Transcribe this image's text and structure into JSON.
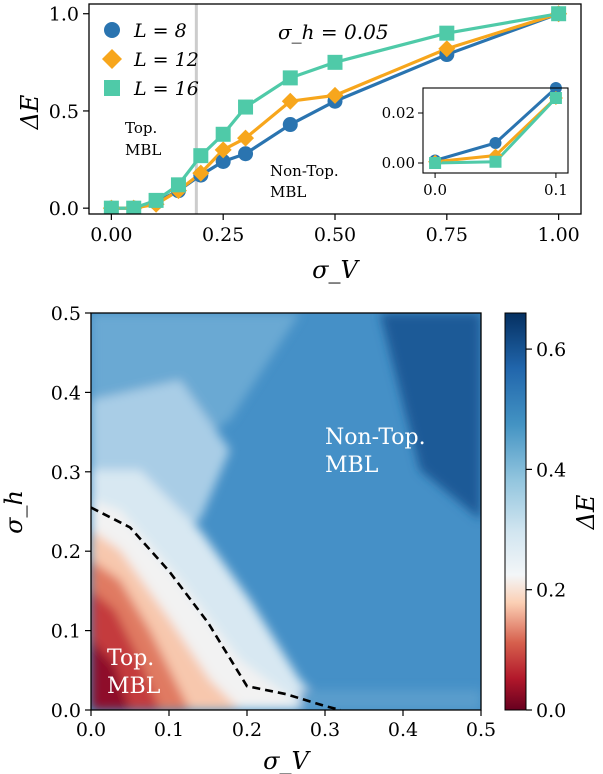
{
  "chart_data": [
    {
      "type": "line",
      "title": "",
      "xlabel": "σ_V",
      "ylabel": "ΔE",
      "xlim": [
        -0.05,
        1.05
      ],
      "ylim": [
        -0.03,
        1.05
      ],
      "x_ticks": [
        "0.00",
        "0.25",
        "0.50",
        "0.75",
        "1.00"
      ],
      "y_ticks": [
        "0.0",
        "0.5",
        "1.0"
      ],
      "parameter_label": "σ_h = 0.05",
      "vertical_line_x": 0.19,
      "legend": {
        "placement": "top-left",
        "entries": [
          "L = 8",
          "L = 12",
          "L = 16"
        ]
      },
      "annotations": [
        {
          "lines": [
            "Top.",
            "MBL"
          ]
        },
        {
          "lines": [
            "Non-Top.",
            "MBL"
          ]
        }
      ],
      "series": [
        {
          "name": "L = 8",
          "color": "#2a74b0",
          "marker": "circle",
          "x": [
            0,
            0.05,
            0.1,
            0.15,
            0.2,
            0.25,
            0.3,
            0.4,
            0.5,
            0.75,
            1.0
          ],
          "y": [
            0.0,
            0.0,
            0.03,
            0.09,
            0.17,
            0.24,
            0.28,
            0.43,
            0.55,
            0.79,
            1.0
          ]
        },
        {
          "name": "L = 12",
          "color": "#f7a61c",
          "marker": "diamond",
          "x": [
            0,
            0.05,
            0.1,
            0.15,
            0.2,
            0.25,
            0.3,
            0.4,
            0.5,
            0.75,
            1.0
          ],
          "y": [
            0.0,
            0.0,
            0.02,
            0.09,
            0.18,
            0.3,
            0.36,
            0.55,
            0.58,
            0.82,
            1.0
          ]
        },
        {
          "name": "L = 16",
          "color": "#4fcaa8",
          "marker": "square",
          "x": [
            0,
            0.05,
            0.1,
            0.15,
            0.2,
            0.25,
            0.3,
            0.4,
            0.5,
            0.75,
            1.0
          ],
          "y": [
            0.0,
            0.0,
            0.04,
            0.12,
            0.27,
            0.38,
            0.52,
            0.67,
            0.75,
            0.9,
            1.0
          ]
        }
      ],
      "inset": {
        "xlim": [
          -0.01,
          0.11
        ],
        "ylim": [
          -0.004,
          0.03
        ],
        "x_ticks": [
          "0.0",
          "0.1"
        ],
        "y_ticks": [
          "0.00",
          "0.02"
        ],
        "series": [
          {
            "name": "L = 8",
            "x": [
              0,
              0.05,
              0.1
            ],
            "y": [
              0.001,
              0.008,
              0.03
            ]
          },
          {
            "name": "L = 12",
            "x": [
              0,
              0.05,
              0.1
            ],
            "y": [
              0.0005,
              0.003,
              0.026
            ]
          },
          {
            "name": "L = 16",
            "x": [
              0,
              0.05,
              0.1
            ],
            "y": [
              0.0,
              0.0005,
              0.026
            ]
          }
        ]
      }
    },
    {
      "type": "heatmap",
      "title": "",
      "xlabel": "σ_V",
      "ylabel": "σ_h",
      "xlim": [
        0,
        0.5
      ],
      "ylim": [
        0,
        0.5
      ],
      "x_ticks": [
        "0.0",
        "0.1",
        "0.2",
        "0.3",
        "0.4",
        "0.5"
      ],
      "y_ticks": [
        "0.0",
        "0.1",
        "0.2",
        "0.3",
        "0.4",
        "0.5"
      ],
      "colorbar": {
        "label": "ΔE",
        "range": [
          0,
          0.66
        ],
        "ticks": [
          "0.0",
          "0.2",
          "0.4",
          "0.6"
        ],
        "colormap": "RdBu"
      },
      "boundary": {
        "style": "dashed",
        "x": [
          0.0,
          0.05,
          0.1,
          0.15,
          0.2,
          0.25,
          0.3,
          0.32
        ],
        "y": [
          0.255,
          0.23,
          0.175,
          0.11,
          0.03,
          0.02,
          0.005,
          0.0
        ]
      },
      "regions": [
        {
          "lines": [
            "Non-Top.",
            "MBL"
          ]
        },
        {
          "lines": [
            "Top.",
            "MBL"
          ]
        }
      ]
    }
  ]
}
